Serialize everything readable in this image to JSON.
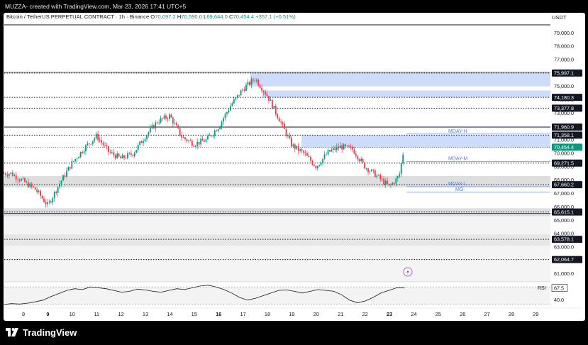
{
  "header": {
    "text": "MUZZA- created with TradingView.com, Mar 23, 2026 17:41 UTC+5"
  },
  "symbol_bar": {
    "name": "Bitcoin / TetherUS PERPETUAL CONTRACT · 1h · Binance",
    "o_label": "O",
    "o_value": "70,097.2",
    "h_label": "H",
    "h_value": "70,590.0",
    "l_label": "L",
    "l_value": "69,644.0",
    "c_label": "C",
    "c_value": "70,454.4",
    "change": "+357.1 (+0.51%)"
  },
  "currency": "USDT",
  "footer": {
    "logo_text": "TradingView",
    "logo_icon": "tradingview-logo-icon"
  },
  "colors": {
    "up": "#089981",
    "down": "#f23645",
    "zone": "#c9d8fc",
    "gray_zone": "#d8d8d8",
    "line_black": "#131722",
    "price_label": "#131722",
    "rsi": "#131722"
  },
  "chart_data": [
    {
      "type": "candlestick",
      "title": "",
      "y_axis": {
        "range": [
          60400,
          79600
        ],
        "tick_labels": [
          "79,000.0",
          "78,000.0",
          "77,000.0",
          "76,000.0",
          "75,000.0",
          "74,000.0",
          "73,000.0",
          "72,000.0",
          "71,000.0",
          "70,000.0",
          "69,000.0",
          "68,000.0",
          "67,000.0",
          "66,000.0",
          "65,000.0",
          "64,000.0",
          "63,000.0",
          "62,000.0",
          "61,000.0"
        ],
        "tick_values": [
          79000,
          78000,
          77000,
          76000,
          75000,
          74000,
          73000,
          72000,
          71000,
          70000,
          69000,
          68000,
          67000,
          66000,
          65000,
          64000,
          63000,
          62000,
          61000
        ]
      },
      "x_axis": {
        "tick_labels": [
          "8",
          "9",
          "10",
          "11",
          "12",
          "13",
          "14",
          "15",
          "16",
          "17",
          "18",
          "19",
          "20",
          "21",
          "22",
          "23",
          "24",
          "25",
          "26",
          "27",
          "28",
          "29"
        ],
        "bold_labels": [
          "9",
          "16",
          "23"
        ]
      },
      "grid": false,
      "price_labels": [
        {
          "value": 75997.1,
          "text": "75,997.1"
        },
        {
          "value": 74180.3,
          "text": "74,180.3"
        },
        {
          "value": 73377.8,
          "text": "73,377.8"
        },
        {
          "value": 71960.9,
          "text": "71,960.9"
        },
        {
          "value": 71358.1,
          "text": "71,358.1"
        },
        {
          "value": 69271.5,
          "text": "69,271.5"
        },
        {
          "value": 67660.2,
          "text": "67,660.2"
        },
        {
          "value": 65615.1,
          "text": "65,615.1"
        },
        {
          "value": 63578.1,
          "text": "63,578.1"
        },
        {
          "value": 62064.7,
          "text": "62,064.7"
        }
      ],
      "current_price": {
        "value": 70454.4,
        "text": "70,454.4"
      },
      "dotted_levels": [
        75997.1,
        74180.3,
        73377.8,
        71358.1,
        69271.5,
        67660.2,
        65615.1,
        63578.1,
        62064.7
      ],
      "solid_levels": [
        71960.9
      ],
      "supply_zones": [
        {
          "from": 75997.1,
          "to": 75000
        },
        {
          "from": 74700,
          "to": 74180.3
        },
        {
          "from": 71358.1,
          "to": 70400
        }
      ],
      "gray_zones": [
        {
          "from": 68300,
          "to": 67450
        },
        {
          "from": 65900,
          "to": 65300
        },
        {
          "from": 63950,
          "to": 63100
        }
      ],
      "annotations": [
        {
          "text": "MDAY-H",
          "value": 71550
        },
        {
          "text": "MDAY-M",
          "value": 69500
        },
        {
          "text": "MDAY-L",
          "value": 67620
        },
        {
          "text": "MO",
          "value": 67200
        }
      ],
      "candles_close_path_days": [
        7.5,
        8.5,
        9.0,
        9.5,
        10.0,
        10.5,
        11.0,
        11.5,
        12.0,
        12.5,
        13.0,
        13.5,
        14.0,
        14.5,
        15.0,
        15.5,
        16.0,
        16.5,
        17.0,
        17.5,
        18.0,
        18.5,
        19.0,
        19.5,
        20.0,
        20.5,
        21.0,
        21.5,
        22.0,
        22.5,
        23.0,
        23.4,
        23.6
      ],
      "candles_close_path_values": [
        68500,
        67300,
        66100,
        67800,
        69300,
        70400,
        71300,
        70100,
        69600,
        70000,
        71300,
        72400,
        72800,
        71200,
        70700,
        71000,
        72000,
        73600,
        74800,
        75600,
        74300,
        72500,
        70600,
        70000,
        69000,
        70100,
        70500,
        70300,
        69000,
        68300,
        67500,
        68300,
        70450
      ]
    },
    {
      "type": "line",
      "title": "",
      "series": [
        {
          "name": "RSI",
          "values": [
            30,
            32,
            31,
            33,
            36,
            40,
            48,
            55,
            62,
            66,
            64,
            70,
            68,
            66,
            62,
            58,
            60,
            65,
            63,
            60,
            58,
            62,
            66,
            64,
            68,
            72,
            74,
            70,
            64,
            56,
            46,
            40,
            44,
            50,
            56,
            62,
            63,
            60,
            56,
            60,
            64,
            62,
            60,
            52,
            40,
            34,
            38,
            46,
            56,
            62,
            68,
            67.5
          ]
        }
      ],
      "y_axis": {
        "range": [
          25,
          80
        ],
        "tick_labels": [
          "40.0"
        ],
        "tick_values": [
          40
        ]
      },
      "value_label": {
        "value": 67.5,
        "text": "67.5",
        "tag": "RSI"
      }
    }
  ]
}
